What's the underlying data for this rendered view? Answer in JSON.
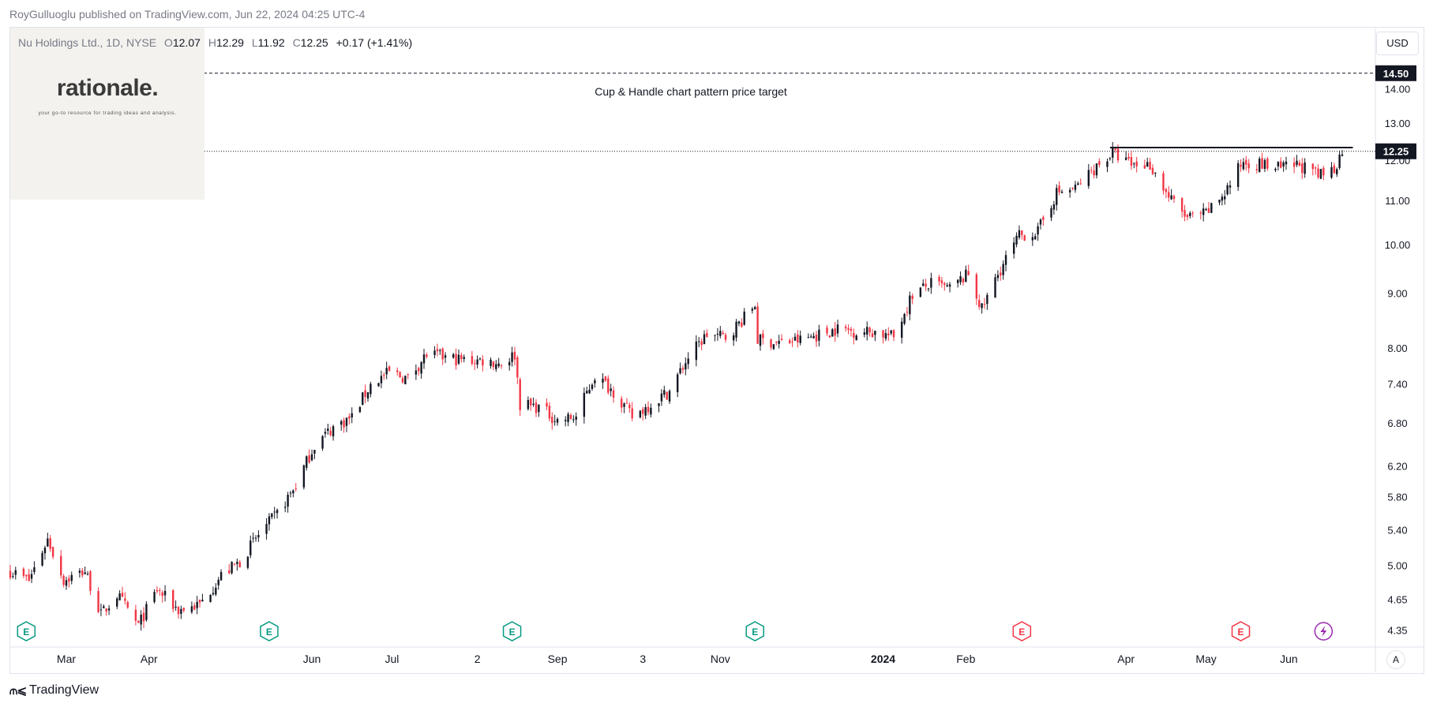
{
  "header": {
    "text": "RoyGulluoglu published on TradingView.com, Jun 22, 2024 04:25 UTC-4"
  },
  "legend": {
    "symbol": "Nu Holdings Ltd., 1D, NYSE",
    "open_label": "O",
    "open": "12.07",
    "high_label": "H",
    "high": "12.29",
    "low_label": "L",
    "low": "11.92",
    "close_label": "C",
    "close": "12.25",
    "change": "+0.17 (+1.41%)"
  },
  "logo": {
    "text": "rationale.",
    "tagline": "your go-to resource for trading ideas and analysis."
  },
  "currency": "USD",
  "auto_label": "A",
  "footer": {
    "brand": "TradingView"
  },
  "colors": {
    "up": "#131722",
    "down": "#f23645",
    "earnings_past": "#089981",
    "earnings_future": "#f23645",
    "dividend": "#9c27b0"
  },
  "chart_data": {
    "type": "candlestick",
    "title": "",
    "y_scale": "log",
    "ylim": [
      4.2,
      16.0
    ],
    "y_ticks": [
      "4.35",
      "4.65",
      "5.00",
      "5.40",
      "5.80",
      "6.20",
      "6.80",
      "7.40",
      "8.00",
      "9.00",
      "10.00",
      "11.00",
      "12.00",
      "13.00",
      "14.00"
    ],
    "x_tick_labels": [
      {
        "label": "Mar",
        "date": "2023-03-01"
      },
      {
        "label": "Apr",
        "date": "2023-04-01"
      },
      {
        "label": "Jun",
        "date": "2023-06-01"
      },
      {
        "label": "Jul",
        "date": "2023-07-01"
      },
      {
        "label": "2",
        "date": "2023-08-02"
      },
      {
        "label": "Sep",
        "date": "2023-09-01"
      },
      {
        "label": "3",
        "date": "2023-10-03"
      },
      {
        "label": "Nov",
        "date": "2023-11-01"
      },
      {
        "label": "2024",
        "date": "2024-01-01",
        "bold": true
      },
      {
        "label": "Feb",
        "date": "2024-02-01"
      },
      {
        "label": "Apr",
        "date": "2024-04-01"
      },
      {
        "label": "May",
        "date": "2024-05-01"
      },
      {
        "label": "Jun",
        "date": "2024-06-01"
      }
    ],
    "x_range": [
      "2023-02-08",
      "2024-06-21"
    ],
    "price_path": [
      {
        "date": "2023-02-08",
        "price": 4.95
      },
      {
        "date": "2023-02-15",
        "price": 4.85
      },
      {
        "date": "2023-02-22",
        "price": 5.3
      },
      {
        "date": "2023-02-28",
        "price": 4.85
      },
      {
        "date": "2023-03-08",
        "price": 4.95
      },
      {
        "date": "2023-03-14",
        "price": 4.5
      },
      {
        "date": "2023-03-20",
        "price": 4.7
      },
      {
        "date": "2023-03-28",
        "price": 4.4
      },
      {
        "date": "2023-04-04",
        "price": 4.75
      },
      {
        "date": "2023-04-12",
        "price": 4.55
      },
      {
        "date": "2023-04-20",
        "price": 4.6
      },
      {
        "date": "2023-04-28",
        "price": 4.9
      },
      {
        "date": "2023-05-05",
        "price": 5.05
      },
      {
        "date": "2023-05-12",
        "price": 5.35
      },
      {
        "date": "2023-05-19",
        "price": 5.6
      },
      {
        "date": "2023-05-26",
        "price": 5.95
      },
      {
        "date": "2023-06-02",
        "price": 6.5
      },
      {
        "date": "2023-06-09",
        "price": 6.75
      },
      {
        "date": "2023-06-16",
        "price": 6.9
      },
      {
        "date": "2023-06-23",
        "price": 7.4
      },
      {
        "date": "2023-06-30",
        "price": 7.6
      },
      {
        "date": "2023-07-07",
        "price": 7.5
      },
      {
        "date": "2023-07-14",
        "price": 7.9
      },
      {
        "date": "2023-07-21",
        "price": 7.85
      },
      {
        "date": "2023-07-28",
        "price": 7.8
      },
      {
        "date": "2023-08-04",
        "price": 7.8
      },
      {
        "date": "2023-08-11",
        "price": 7.75
      },
      {
        "date": "2023-08-16",
        "price": 7.9
      },
      {
        "date": "2023-08-18",
        "price": 7.1
      },
      {
        "date": "2023-08-25",
        "price": 7.05
      },
      {
        "date": "2023-09-01",
        "price": 6.85
      },
      {
        "date": "2023-09-08",
        "price": 6.9
      },
      {
        "date": "2023-09-15",
        "price": 7.55
      },
      {
        "date": "2023-09-22",
        "price": 7.3
      },
      {
        "date": "2023-09-29",
        "price": 6.9
      },
      {
        "date": "2023-10-06",
        "price": 7.1
      },
      {
        "date": "2023-10-13",
        "price": 7.3
      },
      {
        "date": "2023-10-20",
        "price": 7.85
      },
      {
        "date": "2023-10-27",
        "price": 8.25
      },
      {
        "date": "2023-11-03",
        "price": 8.2
      },
      {
        "date": "2023-11-10",
        "price": 8.55
      },
      {
        "date": "2023-11-14",
        "price": 8.8
      },
      {
        "date": "2023-11-15",
        "price": 8.15
      },
      {
        "date": "2023-11-24",
        "price": 8.1
      },
      {
        "date": "2023-12-01",
        "price": 8.15
      },
      {
        "date": "2023-12-08",
        "price": 8.25
      },
      {
        "date": "2023-12-15",
        "price": 8.35
      },
      {
        "date": "2023-12-22",
        "price": 8.3
      },
      {
        "date": "2023-12-29",
        "price": 8.3
      },
      {
        "date": "2024-01-05",
        "price": 8.2
      },
      {
        "date": "2024-01-12",
        "price": 9.0
      },
      {
        "date": "2024-01-19",
        "price": 9.2
      },
      {
        "date": "2024-01-26",
        "price": 9.1
      },
      {
        "date": "2024-02-02",
        "price": 9.4
      },
      {
        "date": "2024-02-07",
        "price": 8.7
      },
      {
        "date": "2024-02-14",
        "price": 9.5
      },
      {
        "date": "2024-02-21",
        "price": 10.2
      },
      {
        "date": "2024-02-28",
        "price": 10.3
      },
      {
        "date": "2024-03-06",
        "price": 11.2
      },
      {
        "date": "2024-03-13",
        "price": 11.3
      },
      {
        "date": "2024-03-20",
        "price": 11.8
      },
      {
        "date": "2024-03-27",
        "price": 12.2
      },
      {
        "date": "2024-04-03",
        "price": 11.9
      },
      {
        "date": "2024-04-10",
        "price": 11.9
      },
      {
        "date": "2024-04-17",
        "price": 11.1
      },
      {
        "date": "2024-04-24",
        "price": 10.6
      },
      {
        "date": "2024-05-01",
        "price": 10.7
      },
      {
        "date": "2024-05-08",
        "price": 11.2
      },
      {
        "date": "2024-05-15",
        "price": 12.0
      },
      {
        "date": "2024-05-22",
        "price": 11.9
      },
      {
        "date": "2024-05-29",
        "price": 11.8
      },
      {
        "date": "2024-06-05",
        "price": 11.9
      },
      {
        "date": "2024-06-12",
        "price": 11.6
      },
      {
        "date": "2024-06-18",
        "price": 11.8
      },
      {
        "date": "2024-06-21",
        "price": 12.25
      }
    ],
    "resistance": {
      "price": 12.35,
      "start": "2024-03-26",
      "end": "2024-06-25"
    },
    "target": {
      "price": 14.5,
      "label": "Cup & Handle chart pattern price target"
    },
    "last_price": {
      "price": 12.25,
      "label": "12.25"
    },
    "target_tag": {
      "price": 14.5,
      "label": "14.50"
    },
    "events": [
      {
        "type": "E",
        "date": "2023-02-14",
        "kind": "past"
      },
      {
        "type": "E",
        "date": "2023-05-16",
        "kind": "past"
      },
      {
        "type": "E",
        "date": "2023-08-15",
        "kind": "past"
      },
      {
        "type": "E",
        "date": "2023-11-14",
        "kind": "past"
      },
      {
        "type": "E",
        "date": "2024-02-22",
        "kind": "future"
      },
      {
        "type": "E",
        "date": "2024-05-14",
        "kind": "future"
      },
      {
        "type": "D",
        "date": "2024-06-14",
        "kind": "dividend"
      }
    ]
  }
}
